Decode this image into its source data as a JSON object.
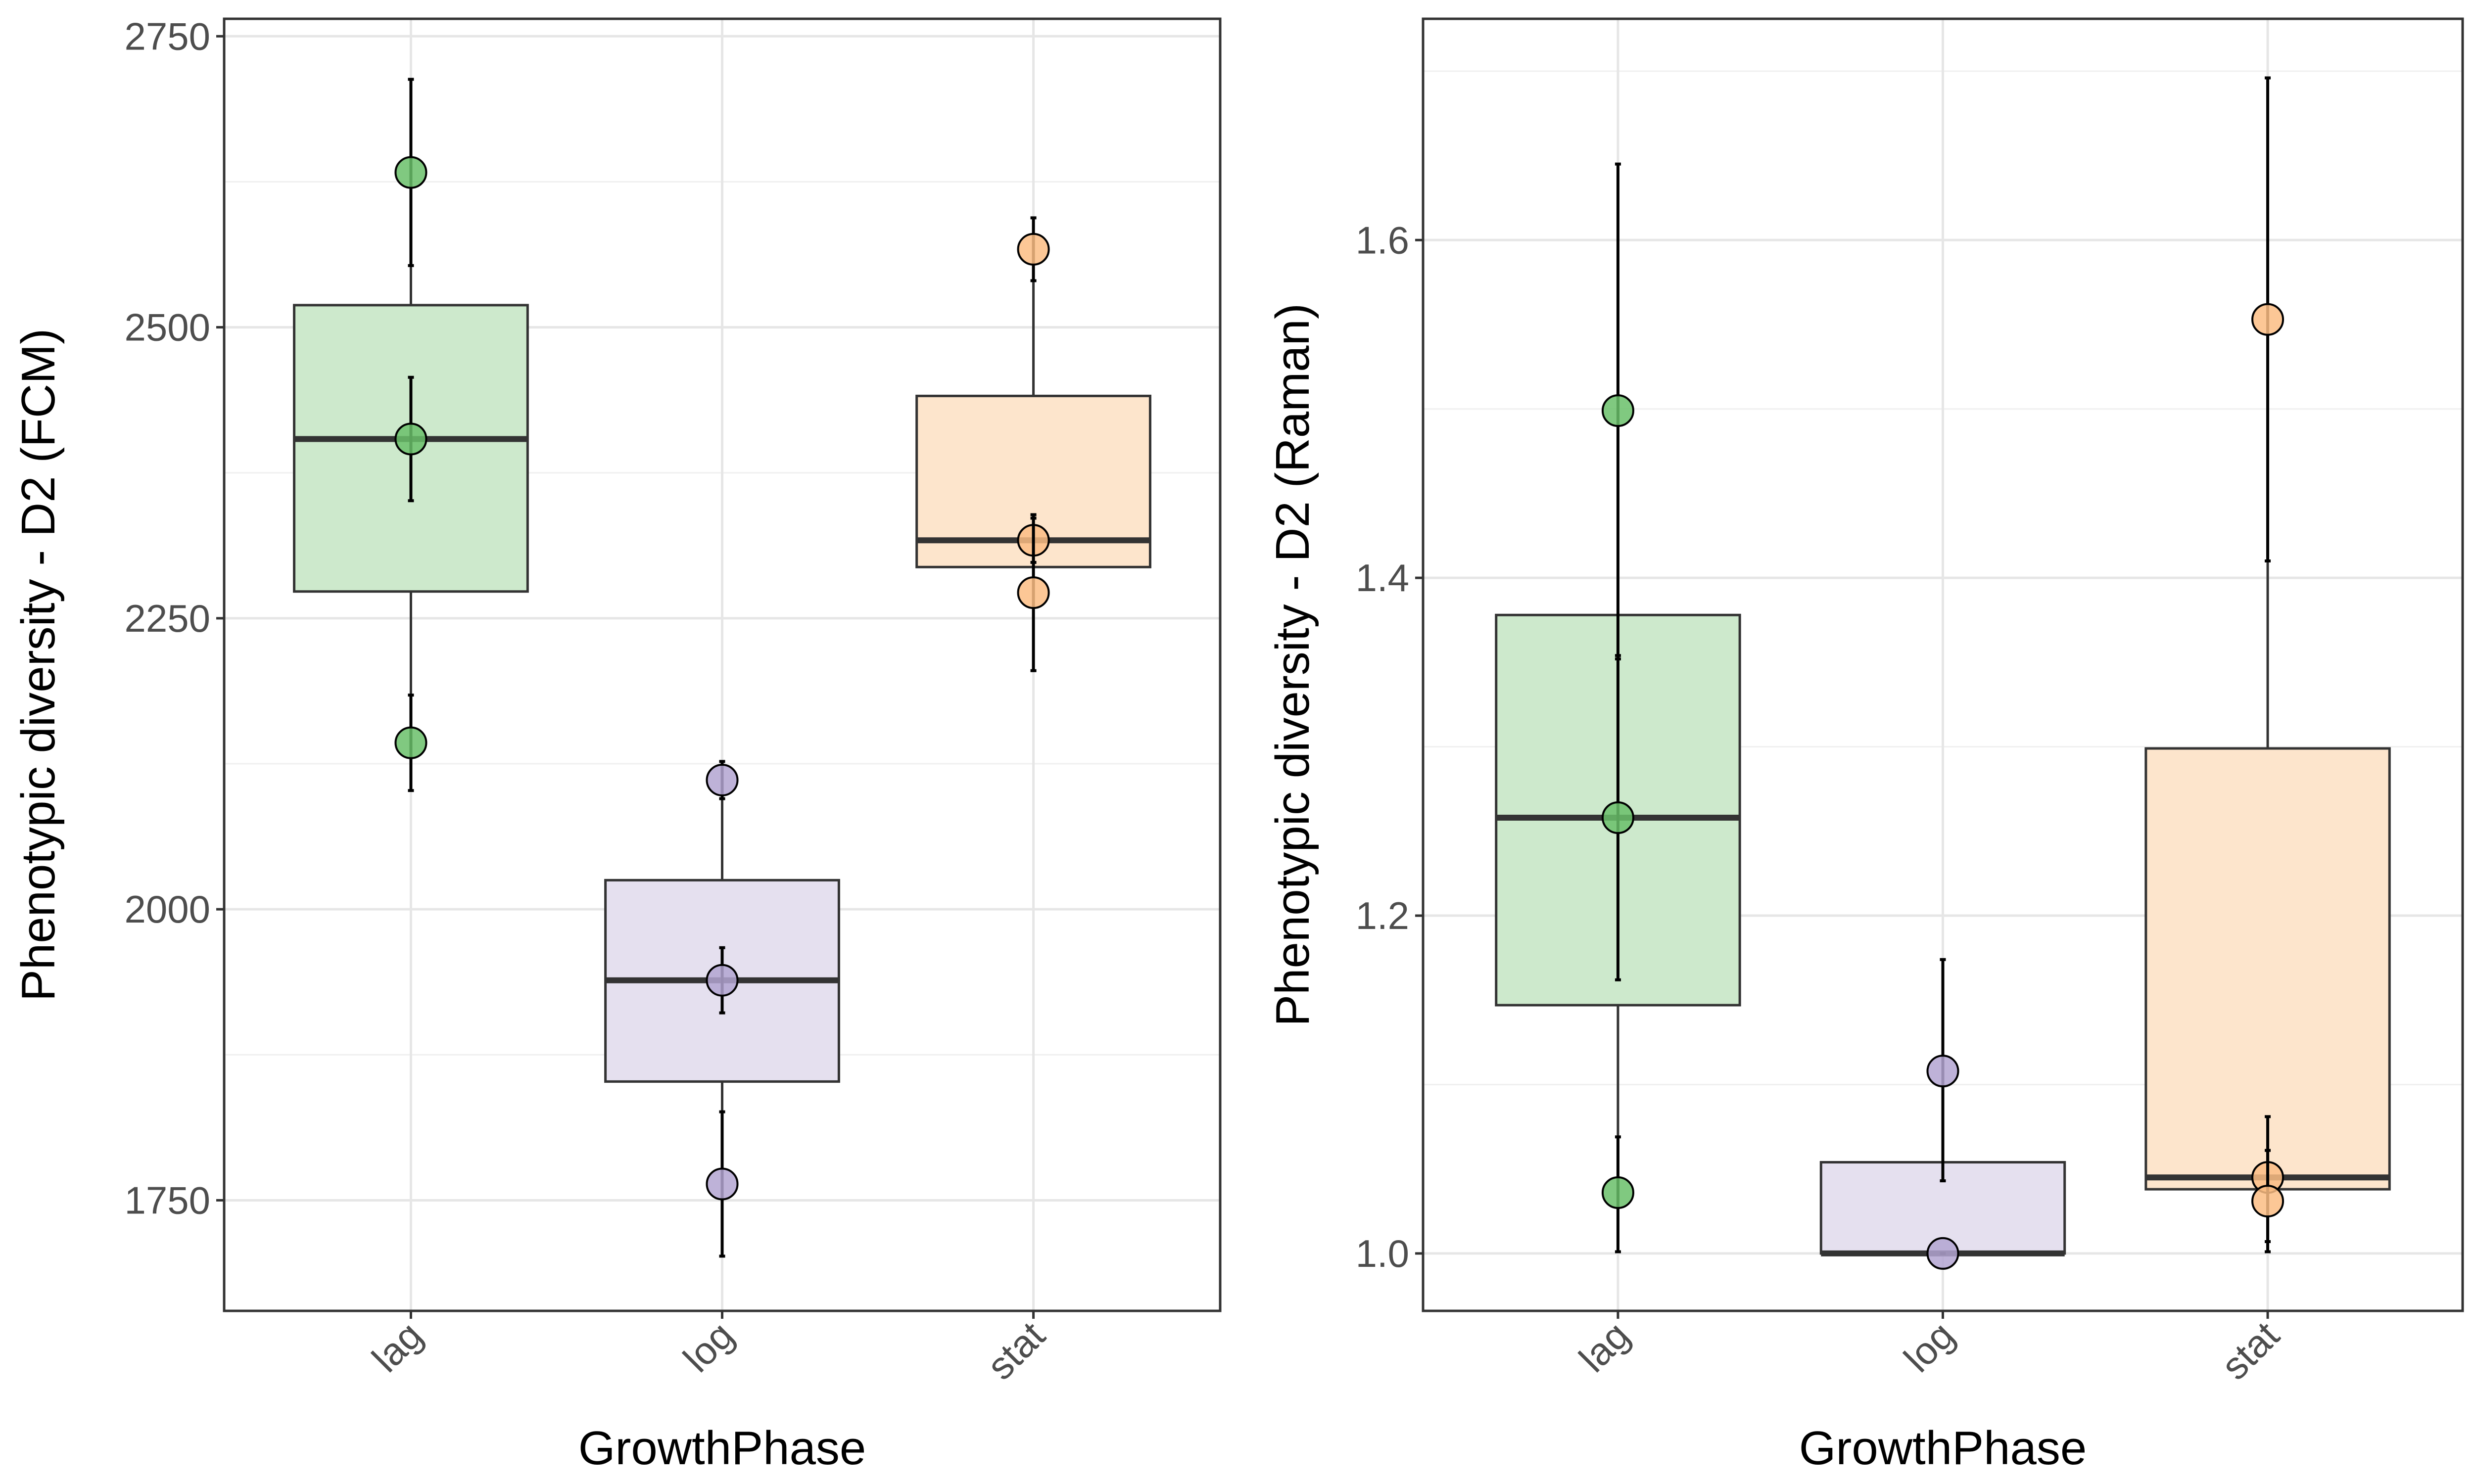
{
  "chart_data": [
    {
      "type": "boxplot",
      "xlabel": "GrowthPhase",
      "ylabel": "Phenotypic diversity - D2 (FCM)",
      "ylim": [
        1655,
        2765
      ],
      "yticks": [
        1750,
        2000,
        2250,
        2500,
        2750
      ],
      "ytick_labels": [
        "1750",
        "2000",
        "2250",
        "2500",
        "2750"
      ],
      "categories": [
        "lag",
        "log",
        "stat"
      ],
      "grid": true,
      "boxes": [
        {
          "category": "lag",
          "q1": 2273,
          "median": 2404,
          "q3": 2519,
          "whisker_low": 2143,
          "whisker_high": 2633,
          "fill": "#cde9cc"
        },
        {
          "category": "log",
          "q1": 1852,
          "median": 1939,
          "q3": 2025,
          "whisker_low": 1764,
          "whisker_high": 2111,
          "fill": "#e5e0ef"
        },
        {
          "category": "stat",
          "q1": 2294,
          "median": 2317,
          "q3": 2441,
          "whisker_low": 2272,
          "whisker_high": 2567,
          "fill": "#fde5cc"
        }
      ],
      "points": [
        {
          "category": "lag",
          "y": 2633,
          "err_low": 2553,
          "err_high": 2713,
          "color": "#6abf6a"
        },
        {
          "category": "lag",
          "y": 2404,
          "err_low": 2351,
          "err_high": 2457,
          "color": "#6abf6a"
        },
        {
          "category": "lag",
          "y": 2143,
          "err_low": 2102,
          "err_high": 2184,
          "color": "#6abf6a"
        },
        {
          "category": "log",
          "y": 2111,
          "err_low": 2095,
          "err_high": 2127,
          "color": "#b3a5d1"
        },
        {
          "category": "log",
          "y": 1939,
          "err_low": 1911,
          "err_high": 1967,
          "color": "#b3a5d1"
        },
        {
          "category": "log",
          "y": 1764,
          "err_low": 1702,
          "err_high": 1826,
          "color": "#b3a5d1"
        },
        {
          "category": "stat",
          "y": 2567,
          "err_low": 2540,
          "err_high": 2594,
          "color": "#fbbd84"
        },
        {
          "category": "stat",
          "y": 2317,
          "err_low": 2298,
          "err_high": 2336,
          "color": "#fbbd84"
        },
        {
          "category": "stat",
          "y": 2272,
          "err_low": 2205,
          "err_high": 2339,
          "color": "#fbbd84"
        }
      ]
    },
    {
      "type": "boxplot",
      "xlabel": "GrowthPhase",
      "ylabel": "Phenotypic diversity - D2 (Raman)",
      "ylim": [
        0.966,
        1.731
      ],
      "yticks": [
        1.0,
        1.2,
        1.4,
        1.6
      ],
      "ytick_labels": [
        "1.0",
        "1.2",
        "1.4",
        "1.6"
      ],
      "categories": [
        "lag",
        "log",
        "stat"
      ],
      "grid": true,
      "boxes": [
        {
          "category": "lag",
          "q1": 1.147,
          "median": 1.258,
          "q3": 1.378,
          "whisker_low": 1.036,
          "whisker_high": 1.499,
          "fill": "#cde9cc"
        },
        {
          "category": "log",
          "q1": 1.0,
          "median": 1.0,
          "q3": 1.054,
          "whisker_low": 1.0,
          "whisker_high": 1.108,
          "fill": "#e5e0ef"
        },
        {
          "category": "stat",
          "q1": 1.038,
          "median": 1.045,
          "q3": 1.299,
          "whisker_low": 1.031,
          "whisker_high": 1.553,
          "fill": "#fde5cc"
        }
      ],
      "points": [
        {
          "category": "lag",
          "y": 1.499,
          "err_low": 1.352,
          "err_high": 1.645,
          "color": "#6abf6a"
        },
        {
          "category": "lag",
          "y": 1.258,
          "err_low": 1.162,
          "err_high": 1.354,
          "color": "#6abf6a"
        },
        {
          "category": "lag",
          "y": 1.036,
          "err_low": 1.001,
          "err_high": 1.069,
          "color": "#6abf6a"
        },
        {
          "category": "log",
          "y": 1.108,
          "err_low": 1.043,
          "err_high": 1.174,
          "color": "#b3a5d1"
        },
        {
          "category": "log",
          "y": 1.0,
          "err_low": 1.0,
          "err_high": 1.0,
          "color": "#b3a5d1"
        },
        {
          "category": "stat",
          "y": 1.553,
          "err_low": 1.41,
          "err_high": 1.696,
          "color": "#fbbd84"
        },
        {
          "category": "stat",
          "y": 1.045,
          "err_low": 1.007,
          "err_high": 1.081,
          "color": "#fbbd84"
        },
        {
          "category": "stat",
          "y": 1.031,
          "err_low": 1.001,
          "err_high": 1.061,
          "color": "#fbbd84"
        }
      ]
    }
  ]
}
